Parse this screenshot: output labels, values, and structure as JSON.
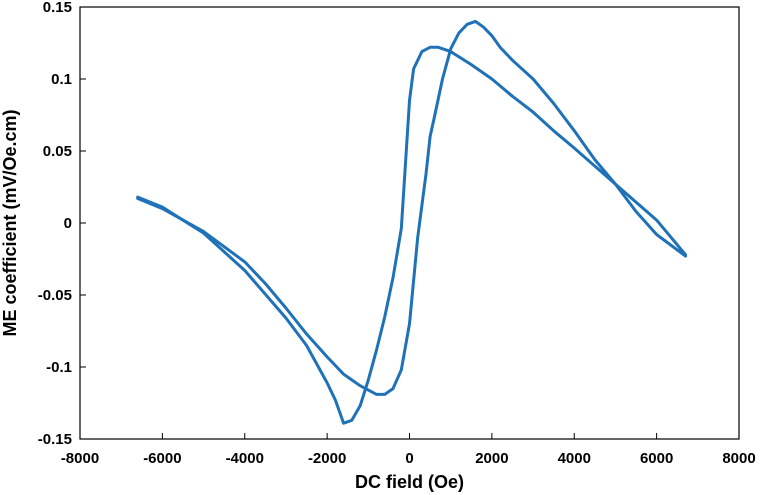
{
  "chart_data": {
    "type": "line",
    "title": "",
    "xlabel": "DC field (Oe)",
    "ylabel": "ME coefficient (mV/Oe.cm)",
    "xlim": [
      -8000,
      8000
    ],
    "ylim": [
      -0.15,
      0.15
    ],
    "x_ticks": [
      "-8000",
      "-6000",
      "-4000",
      "-2000",
      "0",
      "2000",
      "4000",
      "6000",
      "8000"
    ],
    "y_ticks": [
      "-0.15",
      "-0.1",
      "-0.05",
      "0",
      "0.05",
      "0.1",
      "0.15"
    ],
    "x_tick_values": [
      -8000,
      -6000,
      -4000,
      -2000,
      0,
      2000,
      4000,
      6000,
      8000
    ],
    "y_tick_values": [
      -0.15,
      -0.1,
      -0.05,
      0,
      0.05,
      0.1,
      0.15
    ],
    "grid": false,
    "line_color": "#1f72b8",
    "series": [
      {
        "values": [
          [
            -6600,
            0.018
          ],
          [
            -6000,
            0.011
          ],
          [
            -5000,
            -0.007
          ],
          [
            -4000,
            -0.033
          ],
          [
            -3000,
            -0.066
          ],
          [
            -2500,
            -0.085
          ],
          [
            -2000,
            -0.111
          ],
          [
            -1800,
            -0.123
          ],
          [
            -1600,
            -0.139
          ],
          [
            -1400,
            -0.137
          ],
          [
            -1200,
            -0.127
          ],
          [
            -1000,
            -0.109
          ],
          [
            -800,
            -0.088
          ],
          [
            -600,
            -0.065
          ],
          [
            -400,
            -0.038
          ],
          [
            -200,
            -0.004
          ],
          [
            0,
            0.085
          ],
          [
            100,
            0.107
          ],
          [
            300,
            0.119
          ],
          [
            500,
            0.122
          ],
          [
            700,
            0.122
          ],
          [
            1000,
            0.119
          ],
          [
            1500,
            0.11
          ],
          [
            2000,
            0.1
          ],
          [
            2500,
            0.088
          ],
          [
            3000,
            0.077
          ],
          [
            3500,
            0.064
          ],
          [
            4000,
            0.052
          ],
          [
            5000,
            0.027
          ],
          [
            6000,
            0.002
          ],
          [
            6700,
            -0.022
          ]
        ]
      },
      {
        "values": [
          [
            6700,
            -0.023
          ],
          [
            6000,
            -0.008
          ],
          [
            5500,
            0.008
          ],
          [
            5000,
            0.027
          ],
          [
            4500,
            0.044
          ],
          [
            4000,
            0.064
          ],
          [
            3500,
            0.083
          ],
          [
            3000,
            0.1
          ],
          [
            2500,
            0.113
          ],
          [
            2200,
            0.122
          ],
          [
            2000,
            0.13
          ],
          [
            1800,
            0.136
          ],
          [
            1600,
            0.14
          ],
          [
            1400,
            0.138
          ],
          [
            1200,
            0.132
          ],
          [
            1000,
            0.121
          ],
          [
            800,
            0.1
          ],
          [
            600,
            0.073
          ],
          [
            500,
            0.06
          ],
          [
            400,
            0.034
          ],
          [
            200,
            -0.01
          ],
          [
            0,
            -0.07
          ],
          [
            -200,
            -0.102
          ],
          [
            -400,
            -0.115
          ],
          [
            -600,
            -0.119
          ],
          [
            -800,
            -0.119
          ],
          [
            -1200,
            -0.113
          ],
          [
            -1600,
            -0.105
          ],
          [
            -2000,
            -0.093
          ],
          [
            -2500,
            -0.077
          ],
          [
            -3000,
            -0.059
          ],
          [
            -3500,
            -0.042
          ],
          [
            -4000,
            -0.027
          ],
          [
            -5000,
            -0.006
          ],
          [
            -6000,
            0.01
          ],
          [
            -6600,
            0.017
          ]
        ]
      }
    ]
  }
}
